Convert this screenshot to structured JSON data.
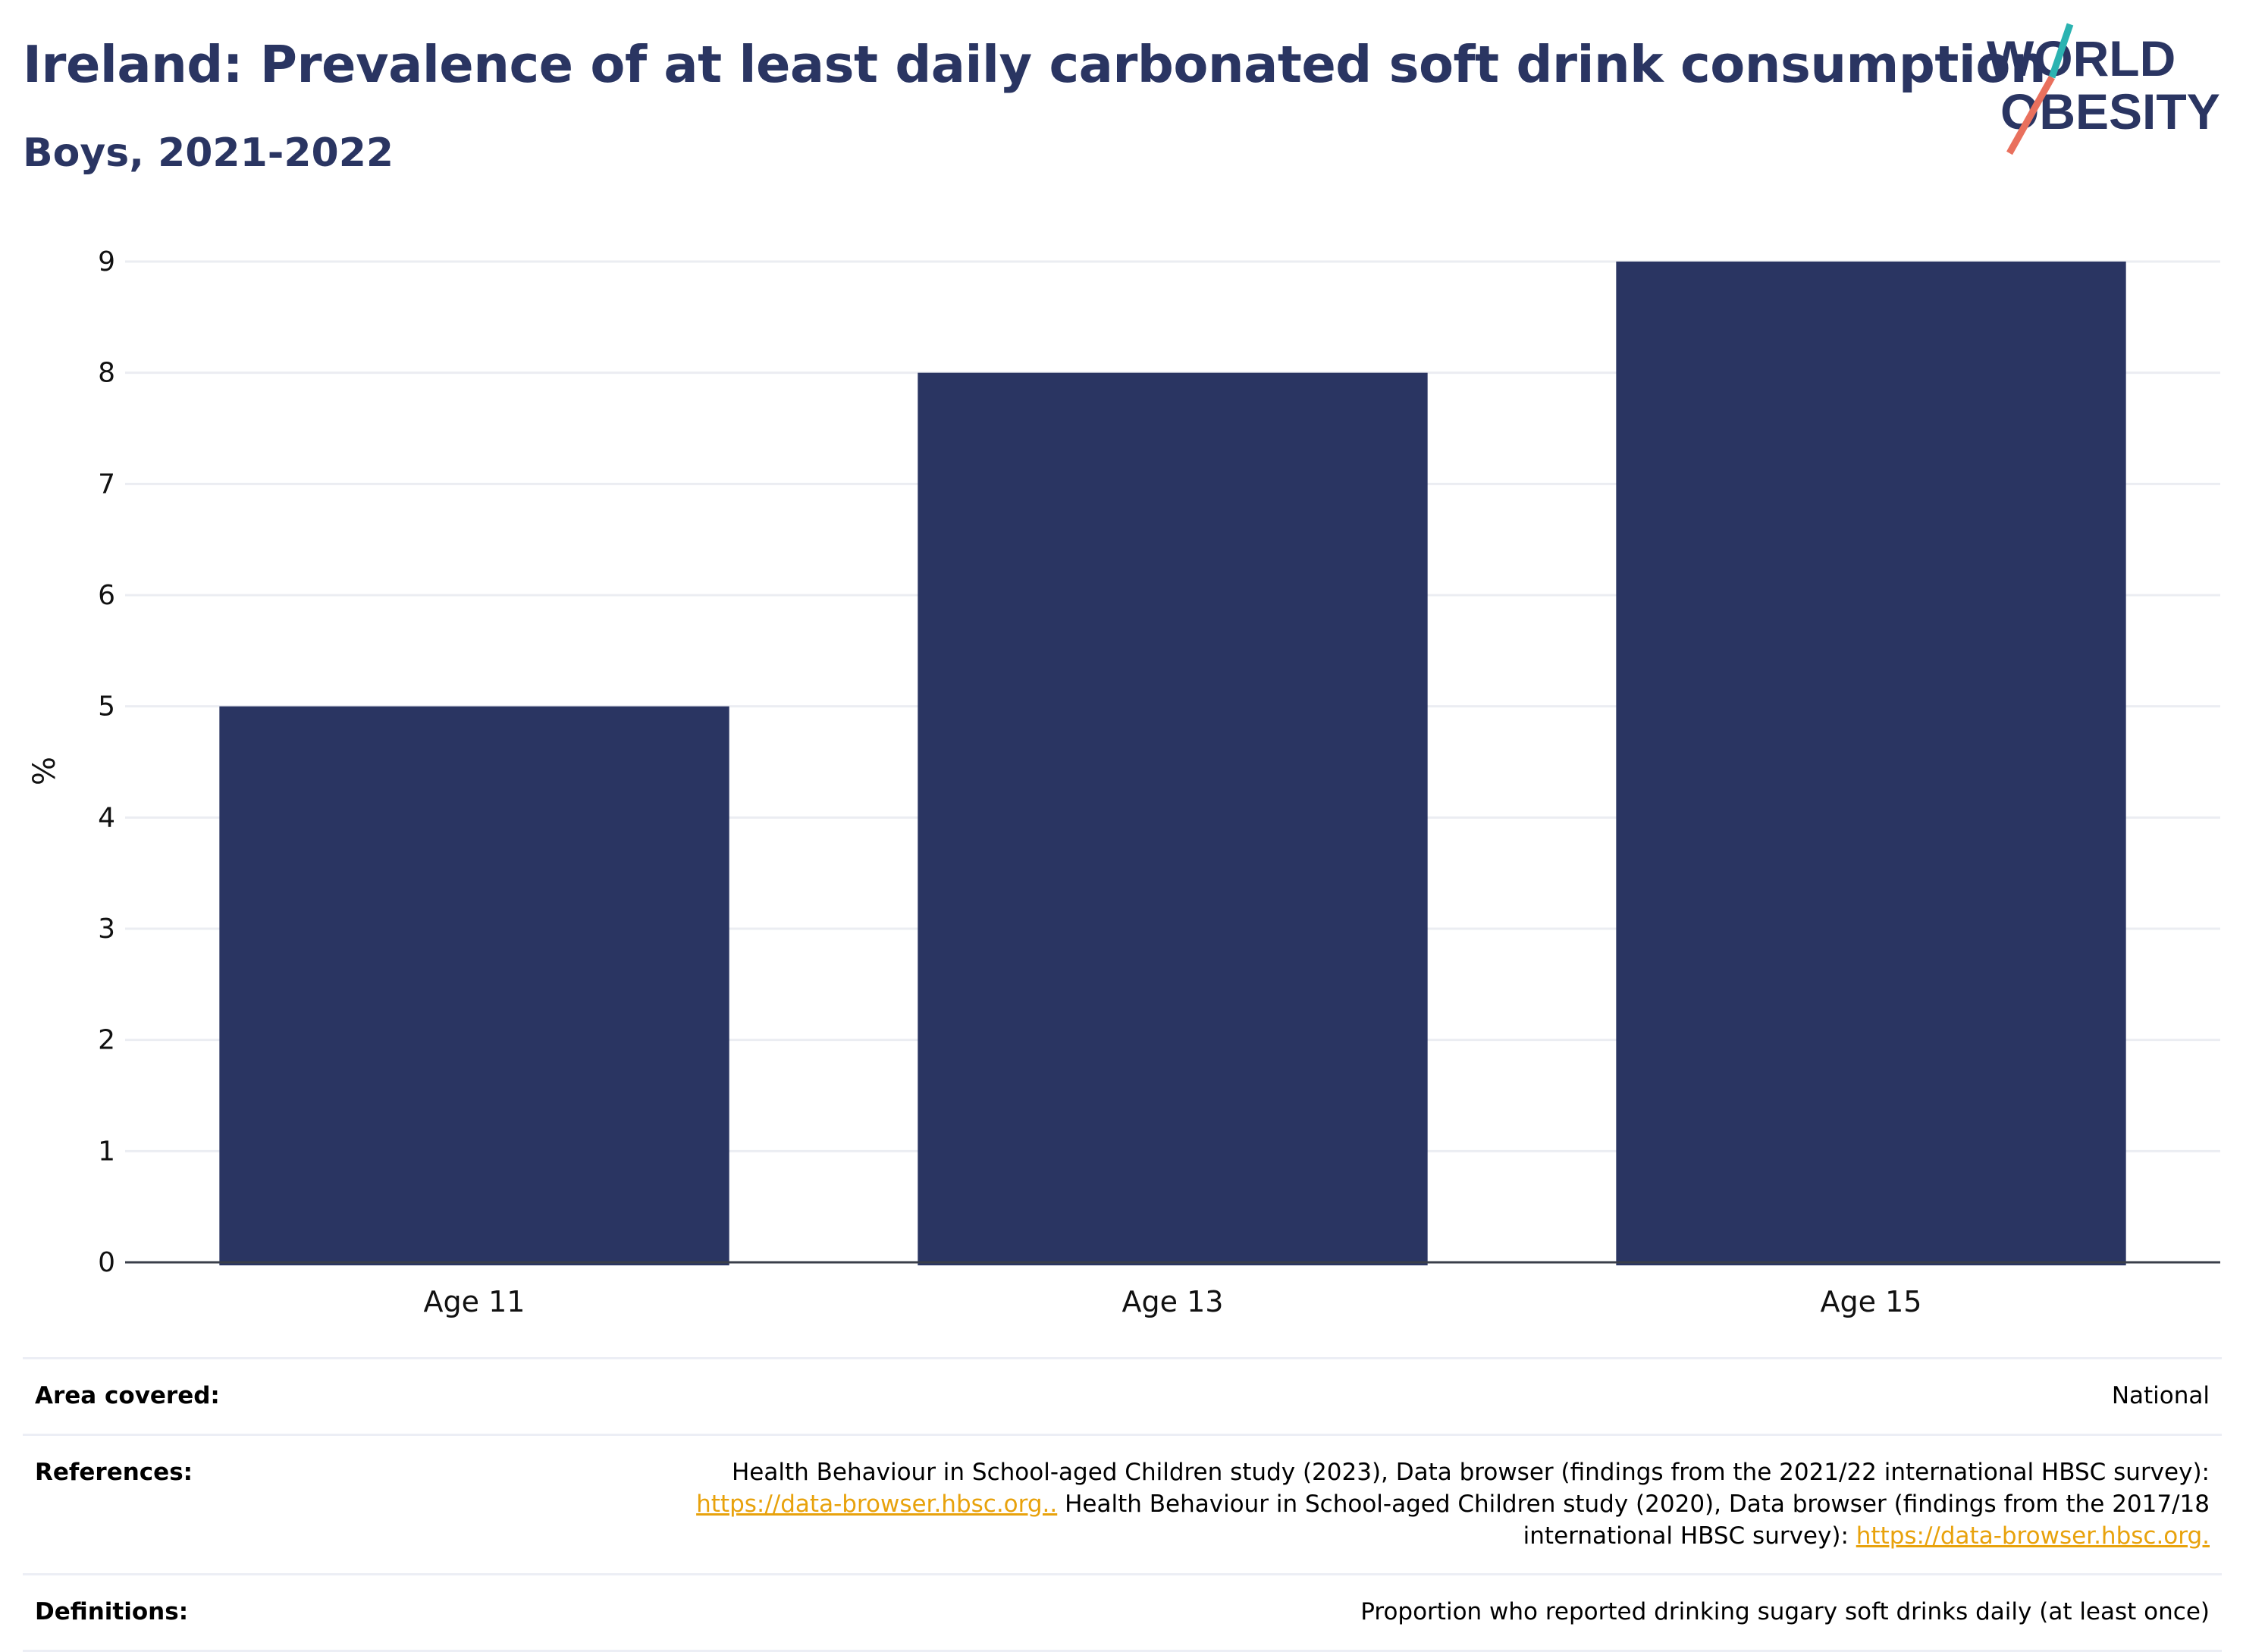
{
  "header": {
    "title": "Ireland: Prevalence of at least daily carbonated soft drink consumption",
    "subtitle": "Boys, 2021-2022"
  },
  "logo": {
    "line1": "WORLD",
    "line2": "OBESITY",
    "colors": {
      "text": "#2a3562",
      "slash_top": "#2bb3b1",
      "slash_bottom": "#e9705d"
    }
  },
  "chart_data": {
    "type": "bar",
    "categories": [
      "Age 11",
      "Age 13",
      "Age 15"
    ],
    "values": [
      5,
      8,
      9
    ],
    "ylabel": "%",
    "xlabel": "",
    "ylim": [
      0,
      9
    ],
    "yticks": [
      0,
      1,
      2,
      3,
      4,
      5,
      6,
      7,
      8,
      9
    ],
    "grid": true,
    "legend": "none",
    "bar_color": "#2a3562"
  },
  "info": {
    "area": {
      "label": "Area covered:",
      "value": "National"
    },
    "references": {
      "label": "References:",
      "text1": "Health Behaviour in School-aged Children study (2023), Data browser (findings from the 2021/22 international HBSC survey):",
      "link1": "https://data-browser.hbsc.org..",
      "text2": " Health Behaviour in School-aged Children study (2020), Data browser (findings from the 2017/18 international HBSC survey): ",
      "link2": "https://data-browser.hbsc.org."
    },
    "definitions": {
      "label": "Definitions:",
      "value": "Proportion who reported drinking sugary soft drinks daily (at least once)"
    }
  }
}
